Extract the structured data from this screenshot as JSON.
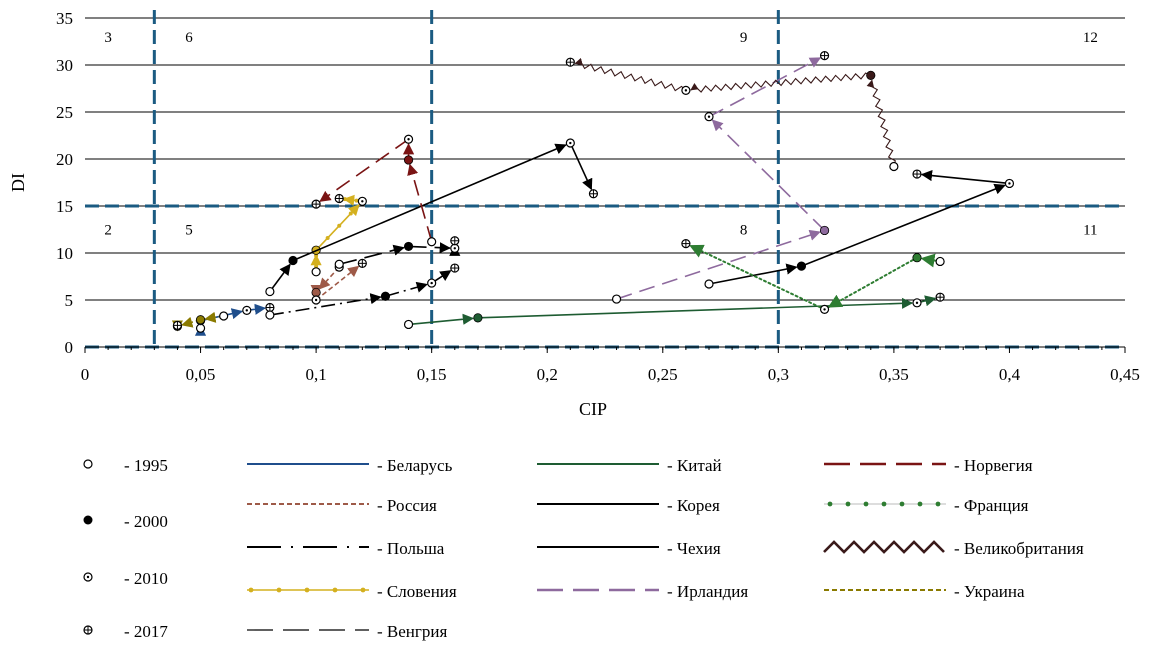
{
  "chart_data": {
    "type": "scatter",
    "xlabel": "CIP",
    "ylabel": "DI",
    "xlim": [
      0,
      0.45
    ],
    "ylim": [
      0,
      35
    ],
    "x_ticks": [
      "0",
      "0,05",
      "0,1",
      "0,15",
      "0,2",
      "0,25",
      "0,3",
      "0,35",
      "0,4",
      "0,45"
    ],
    "y_ticks": [
      "0",
      "5",
      "10",
      "15",
      "20",
      "25",
      "30",
      "35"
    ],
    "grid": "horizontal",
    "boundaries": {
      "x": [
        0.03,
        0.15,
        0.3
      ],
      "y": [
        15
      ]
    },
    "zones": [
      {
        "label": "3",
        "x": 0.01,
        "y": 33
      },
      {
        "label": "6",
        "x": 0.045,
        "y": 33
      },
      {
        "label": "9",
        "x": 0.285,
        "y": 33
      },
      {
        "label": "12",
        "x": 0.435,
        "y": 33
      },
      {
        "label": "2",
        "x": 0.01,
        "y": 12.5
      },
      {
        "label": "5",
        "x": 0.045,
        "y": 12.5
      },
      {
        "label": "8",
        "x": 0.285,
        "y": 12.5
      },
      {
        "label": "11",
        "x": 0.435,
        "y": 12.5
      }
    ],
    "years": [
      {
        "year": "1995",
        "marker": "circle-open",
        "label": "- 1995"
      },
      {
        "year": "2000",
        "marker": "circle-filled",
        "label": "- 2000"
      },
      {
        "year": "2010",
        "marker": "circle-dot",
        "label": "- 2010"
      },
      {
        "year": "2017",
        "marker": "circle-plus",
        "label": "- 2017"
      }
    ],
    "series": [
      {
        "name": "Беларусь",
        "label": "- Беларусь",
        "color": "#1f4e8c",
        "dash": "solid",
        "points": [
          [
            0.05,
            2
          ],
          [
            0.05,
            2.8
          ],
          [
            0.07,
            3.9
          ],
          [
            0.08,
            4.2
          ]
        ]
      },
      {
        "name": "Россия",
        "label": "- Россия",
        "color": "#9e5a48",
        "dash": "short",
        "points": [
          [
            0.11,
            8.5
          ],
          [
            0.1,
            5.8
          ],
          [
            0.1,
            5
          ],
          [
            0.12,
            8.9
          ]
        ]
      },
      {
        "name": "Польша",
        "label": "- Польша",
        "color": "#000000",
        "dash": "dashdot",
        "points": [
          [
            0.08,
            3.4
          ],
          [
            0.13,
            5.4
          ],
          [
            0.15,
            6.8
          ],
          [
            0.16,
            8.4
          ]
        ]
      },
      {
        "name": "Словения",
        "label": "- Словения",
        "color": "#d4b01f",
        "dash": "dotted-line",
        "points": [
          [
            0.1,
            8
          ],
          [
            0.1,
            10.3
          ],
          [
            0.12,
            15.5
          ],
          [
            0.11,
            15.8
          ]
        ]
      },
      {
        "name": "Венгрия",
        "label": "- Венгрия",
        "color": "#000000",
        "dash": "long",
        "points": [
          [
            0.11,
            8.8
          ],
          [
            0.14,
            10.7
          ],
          [
            0.16,
            10.5
          ],
          [
            0.16,
            11.3
          ]
        ]
      },
      {
        "name": "Китай",
        "label": "- Китай",
        "color": "#1e5c32",
        "dash": "solid",
        "points": [
          [
            0.14,
            2.4
          ],
          [
            0.17,
            3.1
          ],
          [
            0.36,
            4.7
          ],
          [
            0.37,
            5.3
          ]
        ]
      },
      {
        "name": "Корея",
        "label": "- Корея",
        "color": "#000000",
        "dash": "solid",
        "points": [
          [
            0.27,
            6.7
          ],
          [
            0.31,
            8.6
          ],
          [
            0.4,
            17.4
          ],
          [
            0.36,
            18.4
          ]
        ]
      },
      {
        "name": "Чехия",
        "label": "- Чехия",
        "color": "#000000",
        "dash": "solid",
        "points": [
          [
            0.08,
            5.9
          ],
          [
            0.09,
            9.2
          ],
          [
            0.21,
            21.7
          ],
          [
            0.22,
            16.3
          ]
        ]
      },
      {
        "name": "Ирландия",
        "label": "- Ирландия",
        "color": "#8e6a9e",
        "dash": "longdash",
        "points": [
          [
            0.23,
            5.1
          ],
          [
            0.32,
            12.4
          ],
          [
            0.27,
            24.5
          ],
          [
            0.32,
            31
          ]
        ]
      },
      {
        "name": "Норвегия",
        "label": "- Норвегия",
        "color": "#7a1414",
        "dash": "longdash",
        "points": [
          [
            0.15,
            11.2
          ],
          [
            0.14,
            19.9
          ],
          [
            0.14,
            22.1
          ],
          [
            0.1,
            15.2
          ]
        ]
      },
      {
        "name": "Франция",
        "label": "- Франция",
        "color": "#2e7d32",
        "dash": "dots",
        "points": [
          [
            0.37,
            9.1
          ],
          [
            0.36,
            9.5
          ],
          [
            0.32,
            4
          ],
          [
            0.26,
            11
          ]
        ]
      },
      {
        "name": "Великобритания",
        "label": "- Великобритания",
        "color": "#3a1a1a",
        "dash": "zigzag",
        "points": [
          [
            0.35,
            19.2
          ],
          [
            0.34,
            28.9
          ],
          [
            0.26,
            27.3
          ],
          [
            0.21,
            30.3
          ]
        ]
      },
      {
        "name": "Украина",
        "label": "- Украина",
        "color": "#8a7a00",
        "dash": "short",
        "points": [
          [
            0.06,
            3.3
          ],
          [
            0.05,
            2.9
          ],
          [
            0.04,
            2.2
          ],
          [
            0.04,
            2.3
          ]
        ]
      }
    ]
  }
}
